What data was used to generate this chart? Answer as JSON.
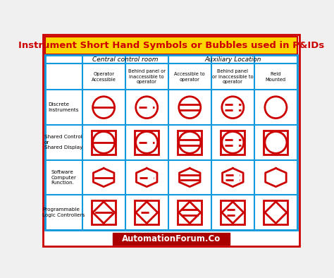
{
  "title": "Instrument Short Hand Symbols or Bubbles used in P&IDs",
  "title_bg": "#FFD700",
  "title_color": "#CC0000",
  "title_border": "#CC0000",
  "footer_text": "AutomationForum.Co",
  "footer_bg": "#AA0000",
  "footer_color": "#FFFFFF",
  "outer_border_color": "#CC0000",
  "table_border_color": "#1199DD",
  "symbol_color": "#CC0000",
  "col_headers_row1": [
    "Central control room",
    "Auxiliary Location"
  ],
  "col_headers_row2": [
    "Operator\nAccessible",
    "Behind panel or\ninaccessible to\noperator",
    "Accessible to\noperator",
    "Behind panel\nor inaccessible to\noperator",
    "Field\nMounted"
  ],
  "row_labels": [
    "Discrete\nInstruments",
    "Shared Control\nor\nShared Display",
    "Software\nComputer\nFunction.",
    "Programmable\nLogic Controllers"
  ],
  "bg_color": "#F0F0F0"
}
